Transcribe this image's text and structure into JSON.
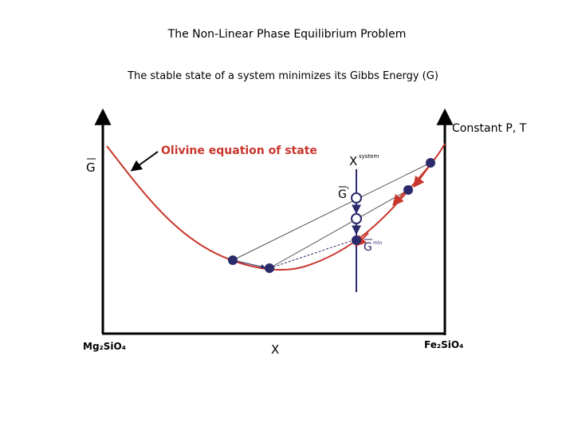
{
  "title": "The Non-Linear Phase Equilibrium Problem",
  "subtitle": "The stable state of a system minimizes its Gibbs Energy (G)",
  "diagram": {
    "y_axis_label": "G",
    "x_axis_label": "X",
    "corner_label": "Constant P, T",
    "curve_label": "Olivine equation of state",
    "left_endmember": "Mg₂SiO₄",
    "right_endmember": "Fe₂SiO₄",
    "x_system_label": "X",
    "x_system_sup": "system",
    "g_prime_label": "G",
    "g_prime_mark": "'",
    "g_min_label": "G",
    "g_min_sup": "min"
  },
  "colors": {
    "curve": "#c8372d",
    "points": "#2b2a6b",
    "axes": "#000000"
  }
}
